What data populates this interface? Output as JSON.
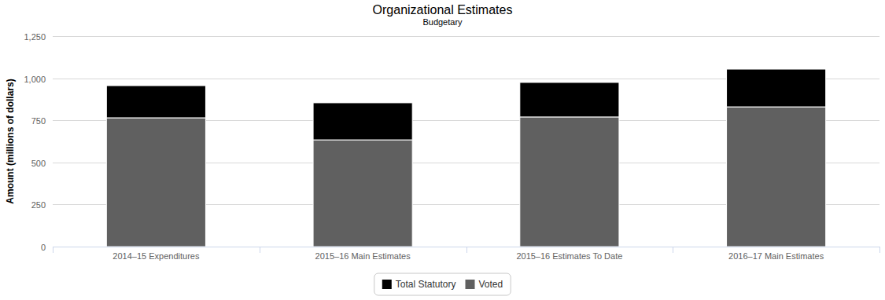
{
  "chart_data": {
    "type": "bar",
    "title": "Organizational Estimates",
    "subtitle": "Budgetary",
    "y_label": "Amount (millions of dollars)",
    "categories": [
      "2014–15 Expenditures",
      "2015–16 Main Estimates",
      "2015–16 Estimates To Date",
      "2016–17 Main Estimates"
    ],
    "series": [
      {
        "name": "Total Statutory",
        "color": "#000000",
        "values": [
          191,
          220,
          205,
          224
        ]
      },
      {
        "name": "Voted",
        "color": "#606060",
        "values": [
          765,
          634,
          770,
          830
        ]
      }
    ],
    "stacked": true,
    "ylim": [
      0,
      1250
    ],
    "yticks": [
      0,
      250,
      500,
      750,
      {
        "value": 1000,
        "label": "1,000"
      },
      {
        "value": 1250,
        "label": "1,250"
      }
    ],
    "grid": true,
    "legend": "bottom"
  }
}
